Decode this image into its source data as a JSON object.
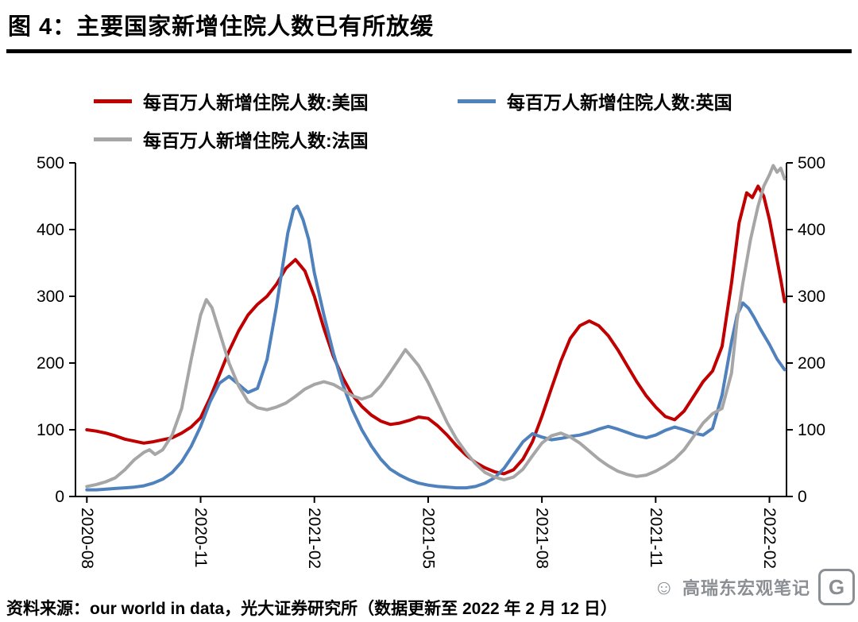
{
  "header": {
    "title": "图 4：主要国家新增住院人数已有所放缓"
  },
  "footer": {
    "source": "资料来源：our world in data，光大证券研究所（数据更新至 2022 年 2 月 12 日）"
  },
  "watermark": {
    "text": "高瑞东宏观笔记",
    "face_icon": "smiley-face",
    "logo_letter": "G"
  },
  "chart_data": {
    "type": "line",
    "title": "主要国家新增住院人数已有所放缓",
    "xlabel": "",
    "ylabel": "每百万人新增住院人数",
    "ylim": [
      0,
      500
    ],
    "y_ticks": [
      0,
      100,
      200,
      300,
      400,
      500
    ],
    "y_axis": "dual, same scale on left and right",
    "grid": false,
    "legend_position": "top",
    "x_unit": "months since 2020-08",
    "x_tick_months": [
      0,
      3,
      6,
      9,
      12,
      15,
      18
    ],
    "x_tick_labels": [
      "2020-08",
      "2020-11",
      "2021-02",
      "2021-05",
      "2021-08",
      "2021-11",
      "2022-02"
    ],
    "x_axis_range_months": [
      -0.3,
      18.45
    ],
    "series": [
      {
        "name": "每百万人新增住院人数:美国",
        "color": "#C00000",
        "points": [
          [
            0,
            100
          ],
          [
            0.25,
            98
          ],
          [
            0.5,
            95
          ],
          [
            0.75,
            91
          ],
          [
            1,
            86
          ],
          [
            1.25,
            83
          ],
          [
            1.5,
            80
          ],
          [
            1.75,
            82
          ],
          [
            2,
            85
          ],
          [
            2.25,
            88
          ],
          [
            2.5,
            95
          ],
          [
            2.75,
            104
          ],
          [
            3,
            118
          ],
          [
            3.25,
            148
          ],
          [
            3.5,
            183
          ],
          [
            3.75,
            218
          ],
          [
            4,
            248
          ],
          [
            4.25,
            272
          ],
          [
            4.5,
            288
          ],
          [
            4.75,
            300
          ],
          [
            5,
            318
          ],
          [
            5.25,
            342
          ],
          [
            5.5,
            355
          ],
          [
            5.75,
            338
          ],
          [
            6,
            300
          ],
          [
            6.25,
            252
          ],
          [
            6.5,
            210
          ],
          [
            6.75,
            178
          ],
          [
            7,
            152
          ],
          [
            7.25,
            135
          ],
          [
            7.5,
            122
          ],
          [
            7.75,
            113
          ],
          [
            8,
            108
          ],
          [
            8.25,
            110
          ],
          [
            8.5,
            114
          ],
          [
            8.75,
            119
          ],
          [
            9,
            117
          ],
          [
            9.25,
            106
          ],
          [
            9.5,
            92
          ],
          [
            9.75,
            76
          ],
          [
            10,
            62
          ],
          [
            10.25,
            51
          ],
          [
            10.5,
            43
          ],
          [
            10.75,
            37
          ],
          [
            11,
            34
          ],
          [
            11.25,
            40
          ],
          [
            11.5,
            56
          ],
          [
            11.75,
            82
          ],
          [
            12,
            120
          ],
          [
            12.25,
            162
          ],
          [
            12.5,
            203
          ],
          [
            12.75,
            237
          ],
          [
            13,
            256
          ],
          [
            13.25,
            263
          ],
          [
            13.5,
            256
          ],
          [
            13.75,
            241
          ],
          [
            14,
            220
          ],
          [
            14.25,
            196
          ],
          [
            14.5,
            172
          ],
          [
            14.75,
            151
          ],
          [
            15,
            134
          ],
          [
            15.25,
            120
          ],
          [
            15.5,
            115
          ],
          [
            15.75,
            128
          ],
          [
            16,
            150
          ],
          [
            16.25,
            172
          ],
          [
            16.5,
            188
          ],
          [
            16.75,
            225
          ],
          [
            17,
            320
          ],
          [
            17.2,
            410
          ],
          [
            17.4,
            455
          ],
          [
            17.55,
            448
          ],
          [
            17.7,
            465
          ],
          [
            17.85,
            450
          ],
          [
            18,
            415
          ],
          [
            18.15,
            370
          ],
          [
            18.3,
            325
          ],
          [
            18.4,
            292
          ]
        ]
      },
      {
        "name": "每百万人新增住院人数:英国",
        "color": "#4F81BD",
        "points": [
          [
            0,
            10
          ],
          [
            0.25,
            10
          ],
          [
            0.5,
            11
          ],
          [
            0.75,
            12
          ],
          [
            1,
            13
          ],
          [
            1.25,
            14
          ],
          [
            1.5,
            16
          ],
          [
            1.75,
            20
          ],
          [
            2,
            26
          ],
          [
            2.25,
            36
          ],
          [
            2.5,
            52
          ],
          [
            2.75,
            75
          ],
          [
            3,
            105
          ],
          [
            3.25,
            142
          ],
          [
            3.5,
            170
          ],
          [
            3.75,
            180
          ],
          [
            4,
            168
          ],
          [
            4.25,
            156
          ],
          [
            4.5,
            162
          ],
          [
            4.75,
            205
          ],
          [
            5,
            285
          ],
          [
            5.15,
            340
          ],
          [
            5.3,
            395
          ],
          [
            5.45,
            430
          ],
          [
            5.55,
            435
          ],
          [
            5.7,
            415
          ],
          [
            5.85,
            385
          ],
          [
            6,
            335
          ],
          [
            6.25,
            272
          ],
          [
            6.5,
            215
          ],
          [
            6.75,
            168
          ],
          [
            7,
            130
          ],
          [
            7.25,
            100
          ],
          [
            7.5,
            76
          ],
          [
            7.75,
            56
          ],
          [
            8,
            41
          ],
          [
            8.25,
            32
          ],
          [
            8.5,
            25
          ],
          [
            8.75,
            20
          ],
          [
            9,
            17
          ],
          [
            9.25,
            15
          ],
          [
            9.5,
            14
          ],
          [
            9.75,
            13
          ],
          [
            10,
            13
          ],
          [
            10.25,
            15
          ],
          [
            10.5,
            20
          ],
          [
            10.75,
            28
          ],
          [
            11,
            42
          ],
          [
            11.25,
            62
          ],
          [
            11.5,
            82
          ],
          [
            11.75,
            94
          ],
          [
            12,
            89
          ],
          [
            12.25,
            85
          ],
          [
            12.5,
            87
          ],
          [
            12.75,
            90
          ],
          [
            13,
            92
          ],
          [
            13.25,
            96
          ],
          [
            13.5,
            101
          ],
          [
            13.75,
            105
          ],
          [
            14,
            101
          ],
          [
            14.25,
            96
          ],
          [
            14.5,
            91
          ],
          [
            14.75,
            88
          ],
          [
            15,
            92
          ],
          [
            15.25,
            99
          ],
          [
            15.5,
            104
          ],
          [
            15.75,
            100
          ],
          [
            16,
            95
          ],
          [
            16.25,
            92
          ],
          [
            16.5,
            102
          ],
          [
            16.75,
            152
          ],
          [
            17,
            232
          ],
          [
            17.15,
            272
          ],
          [
            17.3,
            290
          ],
          [
            17.45,
            282
          ],
          [
            17.6,
            268
          ],
          [
            17.75,
            252
          ],
          [
            18,
            228
          ],
          [
            18.2,
            206
          ],
          [
            18.4,
            190
          ]
        ]
      },
      {
        "name": "每百万人新增住院人数:法国",
        "color": "#A6A6A6",
        "points": [
          [
            0,
            15
          ],
          [
            0.25,
            18
          ],
          [
            0.5,
            22
          ],
          [
            0.75,
            28
          ],
          [
            1,
            40
          ],
          [
            1.25,
            55
          ],
          [
            1.5,
            66
          ],
          [
            1.65,
            70
          ],
          [
            1.8,
            63
          ],
          [
            2,
            70
          ],
          [
            2.25,
            92
          ],
          [
            2.5,
            132
          ],
          [
            2.75,
            205
          ],
          [
            3,
            272
          ],
          [
            3.15,
            295
          ],
          [
            3.3,
            283
          ],
          [
            3.5,
            246
          ],
          [
            3.75,
            200
          ],
          [
            4,
            166
          ],
          [
            4.25,
            142
          ],
          [
            4.5,
            133
          ],
          [
            4.75,
            130
          ],
          [
            5,
            134
          ],
          [
            5.25,
            140
          ],
          [
            5.5,
            150
          ],
          [
            5.75,
            161
          ],
          [
            6,
            168
          ],
          [
            6.25,
            172
          ],
          [
            6.5,
            168
          ],
          [
            6.75,
            160
          ],
          [
            7,
            151
          ],
          [
            7.25,
            146
          ],
          [
            7.5,
            151
          ],
          [
            7.75,
            166
          ],
          [
            8,
            186
          ],
          [
            8.25,
            207
          ],
          [
            8.4,
            220
          ],
          [
            8.55,
            210
          ],
          [
            8.75,
            196
          ],
          [
            9,
            171
          ],
          [
            9.25,
            141
          ],
          [
            9.5,
            111
          ],
          [
            9.75,
            86
          ],
          [
            10,
            66
          ],
          [
            10.25,
            49
          ],
          [
            10.5,
            36
          ],
          [
            10.75,
            29
          ],
          [
            11,
            25
          ],
          [
            11.25,
            29
          ],
          [
            11.5,
            41
          ],
          [
            11.75,
            61
          ],
          [
            12,
            80
          ],
          [
            12.25,
            91
          ],
          [
            12.5,
            95
          ],
          [
            12.75,
            89
          ],
          [
            13,
            80
          ],
          [
            13.25,
            68
          ],
          [
            13.5,
            56
          ],
          [
            13.75,
            46
          ],
          [
            14,
            38
          ],
          [
            14.25,
            33
          ],
          [
            14.5,
            30
          ],
          [
            14.75,
            32
          ],
          [
            15,
            38
          ],
          [
            15.25,
            46
          ],
          [
            15.5,
            56
          ],
          [
            15.75,
            70
          ],
          [
            16,
            90
          ],
          [
            16.25,
            110
          ],
          [
            16.5,
            124
          ],
          [
            16.75,
            132
          ],
          [
            17,
            185
          ],
          [
            17.15,
            265
          ],
          [
            17.3,
            320
          ],
          [
            17.5,
            385
          ],
          [
            17.7,
            435
          ],
          [
            17.85,
            465
          ],
          [
            18,
            482
          ],
          [
            18.1,
            496
          ],
          [
            18.2,
            486
          ],
          [
            18.3,
            492
          ],
          [
            18.4,
            476
          ]
        ]
      }
    ]
  }
}
